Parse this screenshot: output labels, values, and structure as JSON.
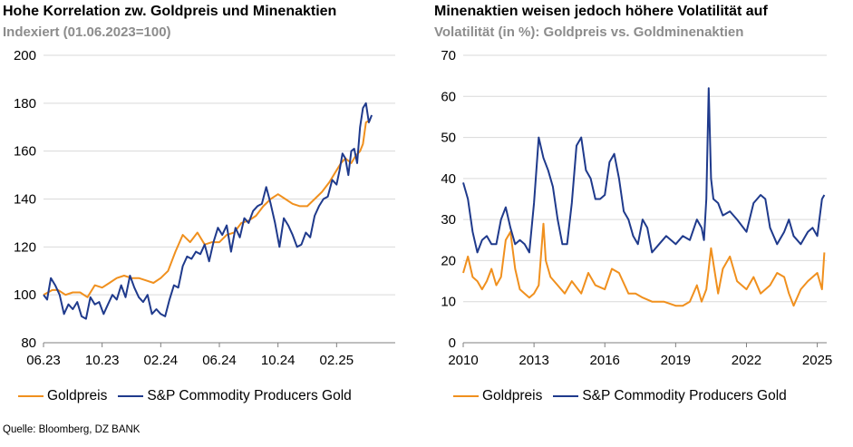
{
  "colors": {
    "gold": "#f0901e",
    "miners": "#1f3a8c",
    "grid": "#d9d9d9",
    "axis": "#7f7f7f"
  },
  "chart_data": [
    {
      "type": "line",
      "title": "Hohe Korrelation zw. Goldpreis und Minenaktien",
      "subtitle": "Indexiert (01.06.2023=100)",
      "ylim": [
        80,
        200
      ],
      "yticks": [
        "200",
        "180",
        "160",
        "140",
        "120",
        "100",
        "80"
      ],
      "xlim": [
        0,
        24
      ],
      "xticks": [
        {
          "t": 0,
          "label": "06.23"
        },
        {
          "t": 4,
          "label": "10.23"
        },
        {
          "t": 8,
          "label": "02.24"
        },
        {
          "t": 12,
          "label": "06.24"
        },
        {
          "t": 16,
          "label": "10.24"
        },
        {
          "t": 20,
          "label": "02.25"
        }
      ],
      "series": [
        {
          "name": "Goldpreis",
          "color": "#f0901e",
          "x": [
            0,
            0.3,
            0.6,
            1,
            1.5,
            2,
            2.5,
            3,
            3.5,
            4,
            4.5,
            5,
            5.5,
            6,
            6.5,
            7,
            7.5,
            8,
            8.5,
            9,
            9.5,
            10,
            10.5,
            11,
            11.5,
            12,
            12.5,
            13,
            13.5,
            14,
            14.5,
            15,
            15.5,
            16,
            16.5,
            17,
            17.5,
            18,
            18.5,
            19,
            19.5,
            20,
            20.3,
            20.6,
            21,
            21.3,
            21.6,
            21.8,
            22,
            22.3
          ],
          "values": [
            100,
            101,
            102,
            102,
            100,
            101,
            101,
            99,
            104,
            103,
            105,
            107,
            108,
            107,
            107,
            106,
            105,
            107,
            110,
            118,
            125,
            122,
            126,
            121,
            122,
            122,
            125,
            126,
            130,
            131,
            133,
            137,
            140,
            142,
            140,
            138,
            137,
            137,
            140,
            143,
            147,
            152,
            155,
            157,
            155,
            158,
            160,
            163,
            172,
            173
          ]
        },
        {
          "name": "S&P Commodity Producers Gold",
          "color": "#1f3a8c",
          "x": [
            0,
            0.25,
            0.5,
            0.8,
            1.1,
            1.4,
            1.7,
            2,
            2.3,
            2.6,
            2.9,
            3.2,
            3.5,
            3.8,
            4.1,
            4.4,
            4.7,
            5,
            5.3,
            5.6,
            5.9,
            6.2,
            6.5,
            6.8,
            7.1,
            7.4,
            7.7,
            8,
            8.3,
            8.6,
            8.9,
            9.2,
            9.5,
            9.8,
            10.1,
            10.4,
            10.7,
            11,
            11.3,
            11.6,
            11.9,
            12.2,
            12.5,
            12.8,
            13.1,
            13.4,
            13.7,
            14,
            14.3,
            14.6,
            14.9,
            15.2,
            15.5,
            15.8,
            16.1,
            16.4,
            16.7,
            17,
            17.3,
            17.6,
            17.9,
            18.2,
            18.5,
            18.8,
            19.1,
            19.4,
            19.7,
            20,
            20.2,
            20.4,
            20.6,
            20.8,
            21,
            21.2,
            21.4,
            21.6,
            21.8,
            22,
            22.2,
            22.4
          ],
          "values": [
            100,
            98,
            107,
            104,
            100,
            92,
            96,
            94,
            97,
            91,
            90,
            99,
            96,
            97,
            92,
            96,
            100,
            98,
            104,
            99,
            108,
            103,
            99,
            97,
            100,
            92,
            94,
            92,
            91,
            98,
            104,
            103,
            112,
            116,
            115,
            118,
            117,
            121,
            114,
            122,
            128,
            125,
            129,
            118,
            128,
            124,
            132,
            130,
            135,
            137,
            138,
            145,
            138,
            130,
            120,
            132,
            129,
            125,
            120,
            121,
            126,
            124,
            133,
            137,
            140,
            141,
            148,
            146,
            152,
            159,
            157,
            150,
            160,
            161,
            155,
            170,
            178,
            180,
            172,
            175
          ]
        }
      ],
      "legend": [
        "Goldpreis",
        "S&P Commodity Producers Gold"
      ]
    },
    {
      "type": "line",
      "title": "Minenaktien weisen jedoch höhere Volatilität auf",
      "subtitle": "Volatilität (in %): Goldpreis vs. Goldminenaktien",
      "ylim": [
        0,
        70
      ],
      "yticks": [
        "70",
        "60",
        "50",
        "40",
        "30",
        "20",
        "10",
        "0"
      ],
      "xlim": [
        2010,
        2025.4
      ],
      "xticks": [
        {
          "t": 2010,
          "label": "2010"
        },
        {
          "t": 2013,
          "label": "2013"
        },
        {
          "t": 2016,
          "label": "2016"
        },
        {
          "t": 2019,
          "label": "2019"
        },
        {
          "t": 2022,
          "label": "2022"
        },
        {
          "t": 2025,
          "label": "2025"
        }
      ],
      "series": [
        {
          "name": "Goldpreis",
          "color": "#f0901e",
          "x": [
            2010,
            2010.2,
            2010.4,
            2010.6,
            2010.8,
            2011,
            2011.2,
            2011.4,
            2011.6,
            2011.8,
            2012,
            2012.2,
            2012.4,
            2012.6,
            2012.8,
            2013,
            2013.2,
            2013.4,
            2013.5,
            2013.7,
            2014,
            2014.3,
            2014.6,
            2015,
            2015.3,
            2015.6,
            2016,
            2016.3,
            2016.6,
            2017,
            2017.3,
            2017.6,
            2018,
            2018.5,
            2019,
            2019.3,
            2019.6,
            2019.9,
            2020.1,
            2020.3,
            2020.5,
            2020.8,
            2021,
            2021.3,
            2021.6,
            2022,
            2022.3,
            2022.6,
            2023,
            2023.3,
            2023.6,
            2023.8,
            2024,
            2024.3,
            2024.6,
            2025,
            2025.2,
            2025.3
          ],
          "values": [
            17,
            21,
            16,
            15,
            13,
            15,
            18,
            14,
            16,
            25,
            27,
            18,
            13,
            12,
            11,
            12,
            14,
            29,
            20,
            16,
            14,
            12,
            15,
            12,
            17,
            14,
            13,
            18,
            17,
            12,
            12,
            11,
            10,
            10,
            9,
            9,
            10,
            14,
            10,
            13,
            23,
            12,
            18,
            21,
            15,
            13,
            16,
            12,
            14,
            17,
            16,
            12,
            9,
            13,
            15,
            17,
            13,
            22
          ]
        },
        {
          "name": "S&P Commodity Producers Gold",
          "color": "#1f3a8c",
          "x": [
            2010,
            2010.2,
            2010.4,
            2010.6,
            2010.8,
            2011,
            2011.2,
            2011.4,
            2011.6,
            2011.8,
            2012,
            2012.2,
            2012.4,
            2012.6,
            2012.8,
            2013,
            2013.2,
            2013.4,
            2013.6,
            2013.8,
            2014,
            2014.2,
            2014.4,
            2014.6,
            2014.8,
            2015,
            2015.2,
            2015.4,
            2015.6,
            2015.8,
            2016,
            2016.2,
            2016.4,
            2016.6,
            2016.8,
            2017,
            2017.2,
            2017.4,
            2017.6,
            2017.8,
            2018,
            2018.3,
            2018.6,
            2019,
            2019.3,
            2019.6,
            2019.9,
            2020.1,
            2020.2,
            2020.3,
            2020.4,
            2020.5,
            2020.6,
            2020.8,
            2021,
            2021.3,
            2021.6,
            2022,
            2022.3,
            2022.6,
            2022.8,
            2023,
            2023.3,
            2023.6,
            2023.8,
            2024,
            2024.3,
            2024.6,
            2024.8,
            2025,
            2025.2,
            2025.3
          ],
          "values": [
            39,
            35,
            27,
            22,
            25,
            26,
            24,
            24,
            30,
            33,
            28,
            24,
            25,
            24,
            22,
            34,
            50,
            45,
            42,
            38,
            30,
            24,
            24,
            34,
            48,
            50,
            42,
            40,
            35,
            35,
            36,
            44,
            46,
            40,
            32,
            30,
            26,
            24,
            30,
            28,
            22,
            24,
            26,
            24,
            26,
            25,
            30,
            28,
            25,
            35,
            62,
            40,
            35,
            34,
            31,
            32,
            30,
            27,
            34,
            36,
            35,
            28,
            24,
            27,
            30,
            26,
            24,
            27,
            28,
            26,
            35,
            36
          ]
        }
      ],
      "legend": [
        "Goldpreis",
        "S&P Commodity Producers Gold"
      ]
    }
  ],
  "source": "Quelle: Bloomberg, DZ BANK"
}
